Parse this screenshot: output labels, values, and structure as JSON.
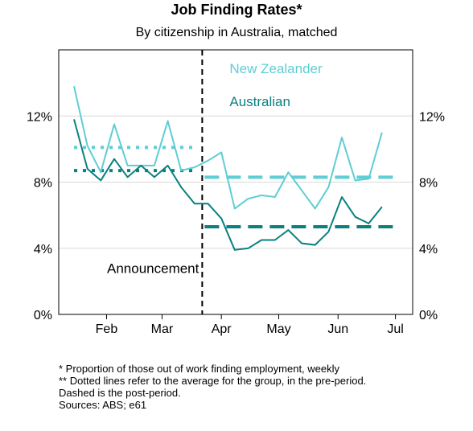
{
  "chart_data": {
    "type": "line",
    "title": "Job Finding Rates*",
    "subtitle": "By citizenship in Australia, matched",
    "xlabel": "",
    "ylabel": "",
    "ylim": [
      0,
      16
    ],
    "yticks": [
      0,
      4,
      8,
      12
    ],
    "ytick_labels": [
      "0%",
      "4%",
      "8%",
      "12%"
    ],
    "xlim": [
      "2020-01-07",
      "2020-07-10"
    ],
    "xticks": [
      {
        "date": "2020-02-01",
        "label": "Feb"
      },
      {
        "date": "2020-03-01",
        "label": "Mar"
      },
      {
        "date": "2020-04-01",
        "label": "Apr"
      },
      {
        "date": "2020-05-01",
        "label": "May"
      },
      {
        "date": "2020-06-01",
        "label": "Jun"
      },
      {
        "date": "2020-07-01",
        "label": "Jul"
      }
    ],
    "grid": "horizontal",
    "announcement": {
      "date": "2020-03-22",
      "label": "Announcement"
    },
    "series": [
      {
        "name": "New Zealander",
        "color": "#5fcdd4",
        "x": [
          "2020-01-15",
          "2020-01-22",
          "2020-01-29",
          "2020-02-05",
          "2020-02-12",
          "2020-02-19",
          "2020-02-26",
          "2020-03-04",
          "2020-03-11",
          "2020-03-18",
          "2020-03-25",
          "2020-04-01",
          "2020-04-08",
          "2020-04-15",
          "2020-04-22",
          "2020-04-29",
          "2020-05-06",
          "2020-05-13",
          "2020-05-20",
          "2020-05-27",
          "2020-06-03",
          "2020-06-10",
          "2020-06-17",
          "2020-06-24",
          "2020-07-01"
        ],
        "values": [
          13.8,
          10.2,
          8.6,
          11.5,
          9.0,
          9.0,
          9.0,
          11.7,
          8.7,
          8.9,
          9.3,
          9.8,
          6.4,
          7.0,
          7.2,
          7.1,
          8.6,
          7.5,
          6.4,
          7.7,
          10.7,
          8.1,
          8.2,
          11.0,
          null
        ],
        "pre_average": 10.1,
        "post_average": 8.3
      },
      {
        "name": "Australian",
        "color": "#0a8080",
        "x": [
          "2020-01-15",
          "2020-01-22",
          "2020-01-29",
          "2020-02-05",
          "2020-02-12",
          "2020-02-19",
          "2020-02-26",
          "2020-03-04",
          "2020-03-11",
          "2020-03-18",
          "2020-03-25",
          "2020-04-01",
          "2020-04-08",
          "2020-04-15",
          "2020-04-22",
          "2020-04-29",
          "2020-05-06",
          "2020-05-13",
          "2020-05-20",
          "2020-05-27",
          "2020-06-03",
          "2020-06-10",
          "2020-06-17",
          "2020-06-24",
          "2020-07-01"
        ],
        "values": [
          11.8,
          8.8,
          8.1,
          9.4,
          8.3,
          9.0,
          8.3,
          9.0,
          7.7,
          6.7,
          6.7,
          5.8,
          3.9,
          4.0,
          4.5,
          4.5,
          5.1,
          4.3,
          4.2,
          5.0,
          7.1,
          5.9,
          5.5,
          6.5,
          null
        ],
        "pre_average": 8.7,
        "post_average": 5.3
      }
    ],
    "footnotes": [
      "* Proportion of those out of work finding employment, weekly",
      "** Dotted lines refer to the average for the group, in the pre-period. Dashed is the post-period.",
      "Sources: ABS; e61"
    ]
  }
}
